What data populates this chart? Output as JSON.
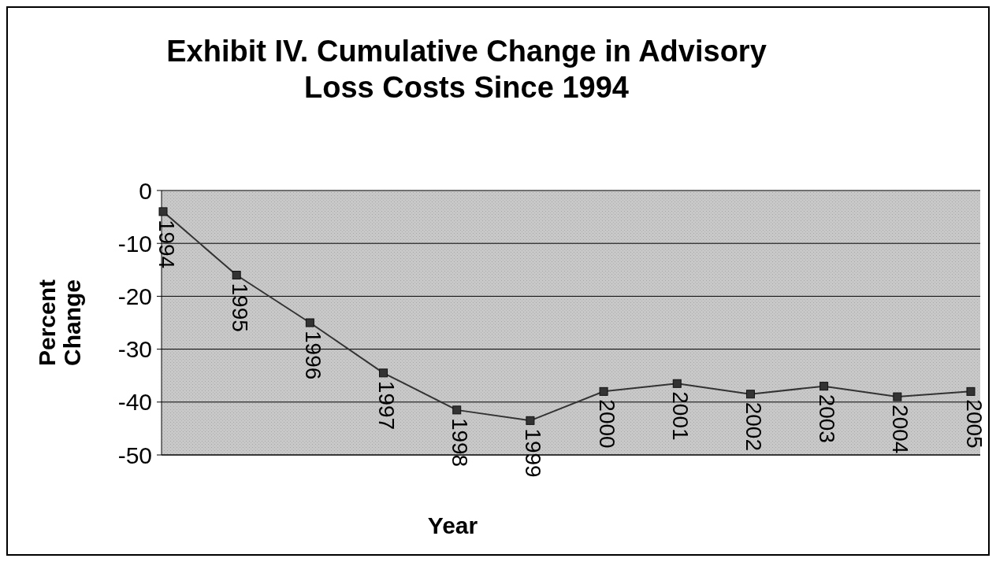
{
  "chart_data": {
    "type": "line",
    "title": "Exhibit IV. Cumulative Change in Advisory\nLoss Costs Since 1994",
    "xlabel": "Year",
    "ylabel": "Percent Change",
    "categories": [
      "1994",
      "1995",
      "1996",
      "1997",
      "1998",
      "1999",
      "2000",
      "2001",
      "2002",
      "2003",
      "2004",
      "2005"
    ],
    "series": [
      {
        "color": "#333333",
        "values": [
          -4,
          -16,
          -25,
          -34.5,
          -41.5,
          -43.5,
          -38,
          -36.5,
          -38.5,
          -37,
          -39,
          -38
        ]
      }
    ],
    "ylim": [
      -50,
      0
    ],
    "yticks": [
      0,
      -10,
      -20,
      -30,
      -40,
      -50
    ],
    "grid": "y",
    "marker": "square",
    "line_style": "solid"
  }
}
